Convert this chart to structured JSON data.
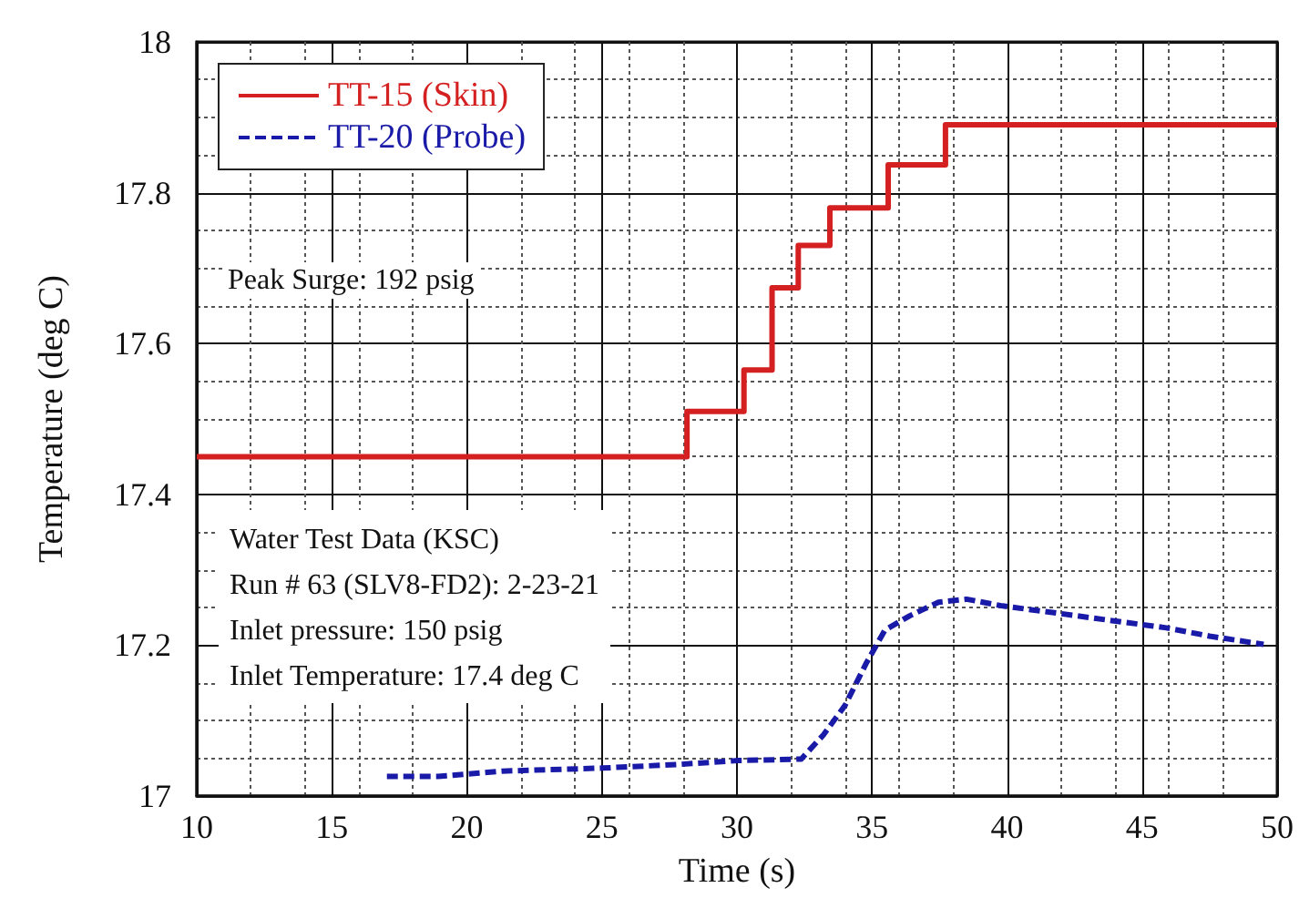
{
  "chart_data": {
    "type": "line",
    "xlabel": "Time (s)",
    "ylabel": "Temperature (deg C)",
    "xlim": [
      10,
      50
    ],
    "xticks": [
      10,
      15,
      20,
      25,
      30,
      35,
      40,
      45,
      50
    ],
    "ylim": [
      17,
      18
    ],
    "yticks": [
      17,
      17.2,
      17.4,
      17.6,
      17.8,
      18
    ],
    "grid": true,
    "legend": "top left",
    "marker": "none",
    "annotations": [
      "Peak Surge: 192 psig",
      "Water Test Data (KSC)",
      "Run # 63 (SLV8-FD2): 2-23-21",
      "Inlet pressure: 150 psig",
      "Inlet Temperature: 17.4 deg C"
    ],
    "series": [
      {
        "name": "TT-15 (Skin)",
        "type": "step",
        "color": "#d42020",
        "line_style": "solid",
        "x": [
          10,
          28.15,
          30.26,
          31.3,
          32.27,
          33.44,
          35.6,
          37.72,
          50
        ],
        "values": [
          17.45,
          17.51,
          17.565,
          17.674,
          17.73,
          17.78,
          17.837,
          17.89,
          17.89
        ]
      },
      {
        "name": "TT-20 (Probe)",
        "color": "#1a1aa8",
        "line_style": "dashed",
        "x": [
          17.04,
          18.94,
          21.3,
          25.0,
          27.9,
          30.05,
          32.38,
          33.2,
          34.0,
          34.8,
          35.48,
          36.4,
          37.46,
          38.5,
          39.84,
          41.96,
          43.8,
          45.9,
          47.5,
          49.5
        ],
        "values": [
          17.026,
          17.026,
          17.033,
          17.037,
          17.042,
          17.047,
          17.049,
          17.081,
          17.12,
          17.177,
          17.22,
          17.239,
          17.257,
          17.261,
          17.252,
          17.242,
          17.233,
          17.223,
          17.212,
          17.201
        ]
      }
    ]
  }
}
